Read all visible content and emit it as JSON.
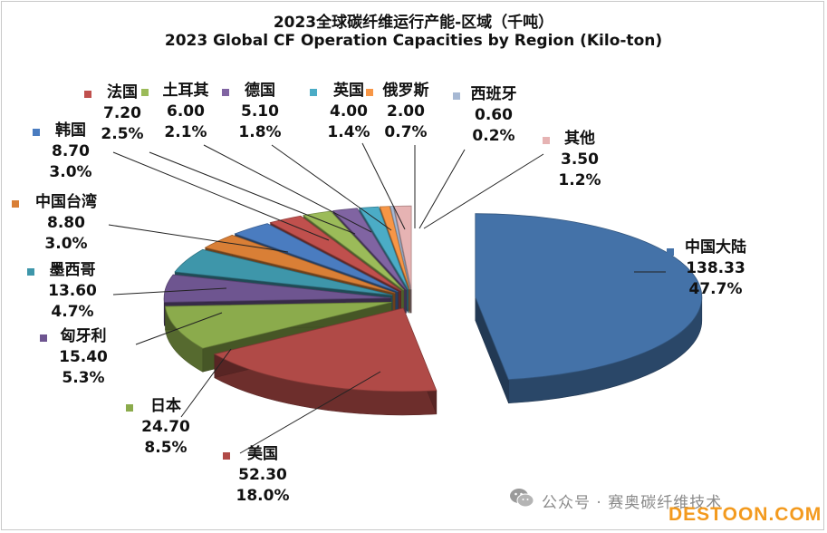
{
  "chart_data": {
    "type": "pie",
    "title": "2023全球碳纤维运行产能-区域（千吨）",
    "subtitle": "2023 Global CF Operation Capacities by Region (Kilo-ton)",
    "slices": [
      {
        "label": "中国大陆",
        "value": 138.33,
        "value_text": "138.33",
        "percent": "47.7%",
        "color": "#4472a8"
      },
      {
        "label": "美国",
        "value": 52.3,
        "value_text": "52.30",
        "percent": "18.0%",
        "color": "#b04a47"
      },
      {
        "label": "日本",
        "value": 24.7,
        "value_text": "24.70",
        "percent": "8.5%",
        "color": "#8bab4c"
      },
      {
        "label": "匈牙利",
        "value": 15.4,
        "value_text": "15.40",
        "percent": "5.3%",
        "color": "#6e5590"
      },
      {
        "label": "墨西哥",
        "value": 13.6,
        "value_text": "13.60",
        "percent": "4.7%",
        "color": "#3e96aa"
      },
      {
        "label": "中国台湾",
        "value": 8.8,
        "value_text": "8.80",
        "percent": "3.0%",
        "color": "#d97f36"
      },
      {
        "label": "韩国",
        "value": 8.7,
        "value_text": "8.70",
        "percent": "3.0%",
        "color": "#4a7cc0"
      },
      {
        "label": "法国",
        "value": 7.2,
        "value_text": "7.20",
        "percent": "2.5%",
        "color": "#c0504d"
      },
      {
        "label": "土耳其",
        "value": 6.0,
        "value_text": "6.00",
        "percent": "2.1%",
        "color": "#9bbb59"
      },
      {
        "label": "德国",
        "value": 5.1,
        "value_text": "5.10",
        "percent": "1.8%",
        "color": "#8064a2"
      },
      {
        "label": "英国",
        "value": 4.0,
        "value_text": "4.00",
        "percent": "1.4%",
        "color": "#4bacc6"
      },
      {
        "label": "俄罗斯",
        "value": 2.0,
        "value_text": "2.00",
        "percent": "0.7%",
        "color": "#f79646"
      },
      {
        "label": "西班牙",
        "value": 0.6,
        "value_text": "0.60",
        "percent": "0.2%",
        "color": "#a6b8d3"
      },
      {
        "label": "其他",
        "value": 3.5,
        "value_text": "3.50",
        "percent": "1.2%",
        "color": "#e6b3b3"
      }
    ],
    "legend_placement": "none (labels with leader lines)",
    "style": "3D exploded pie"
  },
  "watermark": {
    "text": "公众号 · 赛奥碳纤维技术",
    "site": "DESTOON.COM"
  }
}
